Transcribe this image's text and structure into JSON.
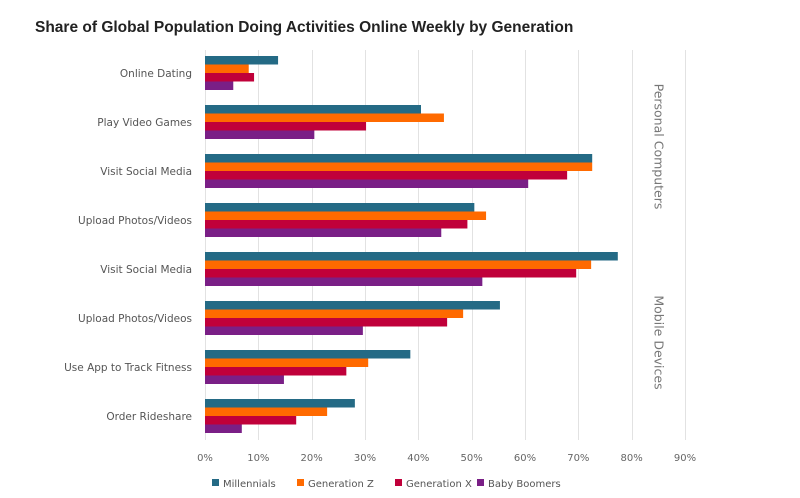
{
  "chart_data": {
    "type": "bar",
    "orientation": "horizontal",
    "title": "Share of Global Population Doing Activities Online Weekly by Generation",
    "xlabel": "",
    "ylabel": "",
    "xlim": [
      0,
      90
    ],
    "x_ticks": [
      "0%",
      "10%",
      "20%",
      "30%",
      "40%",
      "50%",
      "60%",
      "70%",
      "80%",
      "90%"
    ],
    "grid": true,
    "legend_position": "bottom",
    "categories": [
      "Online Dating",
      "Play Video Games",
      "Visit Social Media",
      "Upload Photos/Videos",
      "Visit Social Media",
      "Upload Photos/Videos",
      "Use App to Track Fitness",
      "Order Rideshare"
    ],
    "sections": [
      {
        "label": "Personal Computers",
        "category_indices": [
          0,
          1,
          2,
          3
        ]
      },
      {
        "label": "Mobile Devices",
        "category_indices": [
          4,
          5,
          6,
          7
        ]
      }
    ],
    "series": [
      {
        "name": "Millennials",
        "color": "#246a85",
        "values": [
          13.7,
          40.5,
          72.6,
          50.5,
          77.4,
          55.3,
          38.5,
          28.1
        ]
      },
      {
        "name": "Generation Z",
        "color": "#ff6a00",
        "values": [
          8.2,
          44.8,
          72.6,
          52.7,
          72.4,
          48.4,
          30.6,
          22.9
        ]
      },
      {
        "name": "Generation X",
        "color": "#c0003a",
        "values": [
          9.2,
          30.2,
          67.9,
          49.2,
          69.6,
          45.4,
          26.5,
          17.1
        ]
      },
      {
        "name": "Baby Boomers",
        "color": "#7a1f86",
        "values": [
          5.3,
          20.5,
          60.6,
          44.3,
          52.0,
          29.6,
          14.8,
          6.9
        ]
      }
    ]
  }
}
